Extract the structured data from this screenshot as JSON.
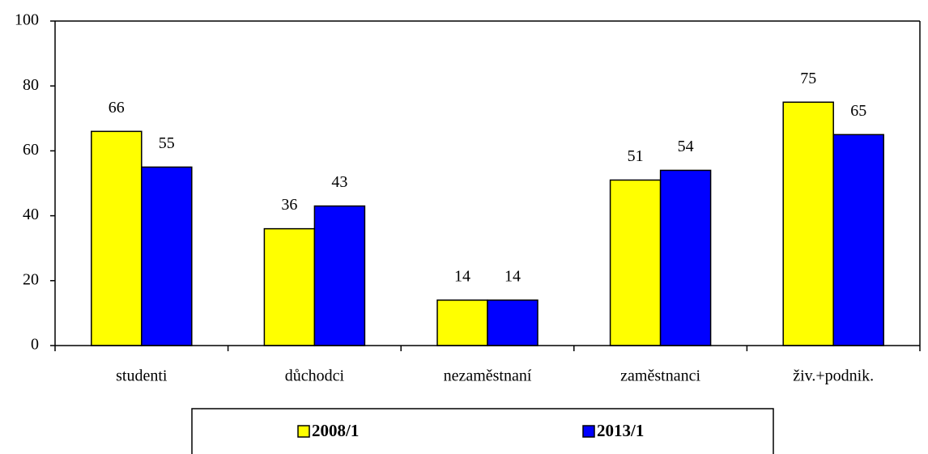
{
  "chart_data": {
    "type": "bar",
    "categories": [
      "studenti",
      "důchodci",
      "nezaměstnaní",
      "zaměstnanci",
      "živ.+podnik."
    ],
    "series": [
      {
        "name": "2008/1",
        "color": "#ffff00",
        "values": [
          66,
          36,
          14,
          51,
          75
        ]
      },
      {
        "name": "2013/1",
        "color": "#0000ff",
        "values": [
          55,
          43,
          14,
          54,
          65
        ]
      }
    ],
    "ylim": [
      0,
      100
    ],
    "yticks": [
      0,
      20,
      40,
      60,
      80,
      100
    ],
    "grid": false,
    "legend": "bottom"
  }
}
